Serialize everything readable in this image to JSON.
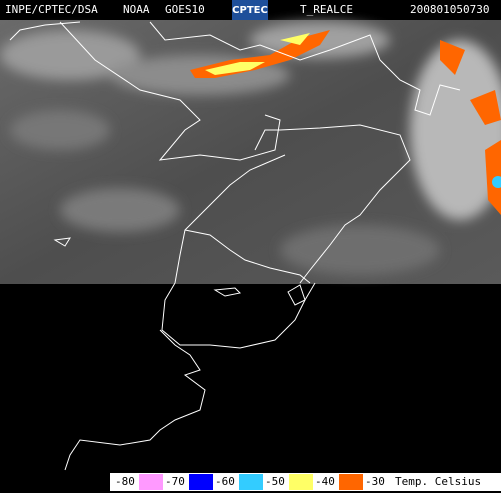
{
  "header": {
    "source": "INPE/CPTEC/DSA",
    "operator": "NOAA",
    "satellite": "GOES10",
    "logo": "CPTEC",
    "product": "T_REALCE",
    "timestamp": "200801050730"
  },
  "legend": {
    "ticks": [
      -80,
      -70,
      -60,
      -50,
      -40,
      -30
    ],
    "colors": [
      "#ff99ff",
      "#0000ff",
      "#33ccff",
      "#ffff66",
      "#ff6600"
    ],
    "unit": "Temp. Celsius"
  }
}
